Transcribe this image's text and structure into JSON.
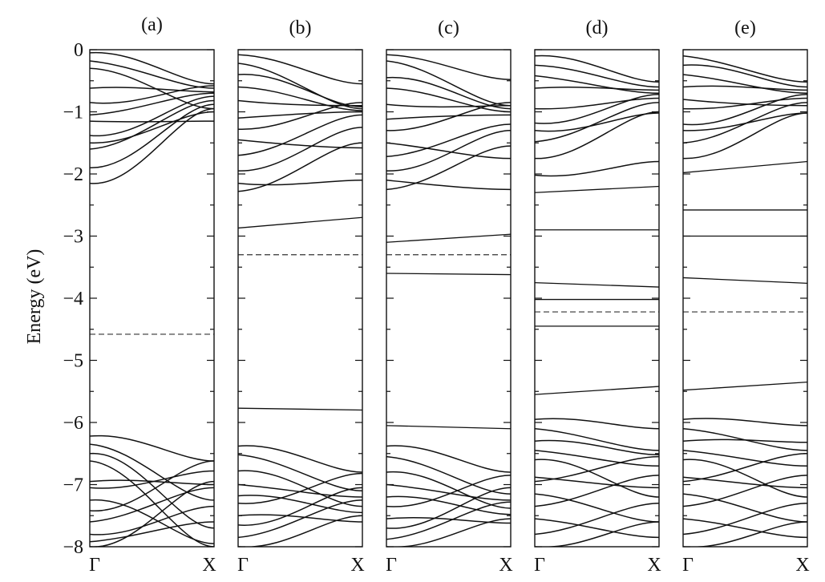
{
  "chart_data": {
    "type": "line",
    "ylabel": "Energy (eV)",
    "ylim": [
      -8,
      0
    ],
    "y_ticks": [
      "0",
      "−1",
      "−2",
      "−3",
      "−4",
      "−5",
      "−6",
      "−7",
      "−8"
    ],
    "y_tick_values": [
      0,
      -1,
      -2,
      -3,
      -4,
      -5,
      -6,
      -7,
      -8
    ],
    "x_ticks": [
      "Γ",
      "X"
    ],
    "panels": [
      {
        "label": "(a)",
        "fermi_level": -4.58,
        "flat_bands": [],
        "dispersive_bands": [
          [
            -0.18,
            -0.62
          ],
          [
            -0.62,
            -0.68
          ],
          [
            -1.15,
            -1.15
          ],
          [
            -1.38,
            -0.75
          ],
          [
            -1.6,
            -0.82
          ],
          [
            -1.9,
            -0.88
          ],
          [
            -2.15,
            -0.95
          ],
          [
            -0.05,
            -0.55
          ],
          [
            -0.3,
            -0.95
          ],
          [
            -0.85,
            -0.58
          ],
          [
            -1.05,
            -0.7
          ],
          [
            -1.5,
            -1.0
          ]
        ],
        "valence_bands": [
          [
            -6.22,
            -6.62
          ],
          [
            -6.35,
            -7.25
          ],
          [
            -6.5,
            -7.7
          ],
          [
            -6.62,
            -8.0
          ],
          [
            -6.95,
            -7.0
          ],
          [
            -7.05,
            -6.78
          ],
          [
            -7.25,
            -7.95
          ],
          [
            -7.42,
            -6.62
          ],
          [
            -7.6,
            -7.05
          ],
          [
            -7.8,
            -7.35
          ],
          [
            -7.92,
            -7.6
          ],
          [
            -8.0,
            -6.95
          ]
        ]
      },
      {
        "label": "(b)",
        "fermi_level": -3.3,
        "flat_bands": [
          [
            -2.87,
            -2.7
          ],
          [
            -5.77,
            -5.8
          ]
        ],
        "dispersive_bands": [
          [
            -0.22,
            -0.95
          ],
          [
            -0.4,
            -0.92
          ],
          [
            -0.6,
            -0.98
          ],
          [
            -0.82,
            -0.9
          ],
          [
            -1.1,
            -1.0
          ],
          [
            -1.28,
            -0.85
          ],
          [
            -1.45,
            -1.58
          ],
          [
            -1.7,
            -1.05
          ],
          [
            -1.95,
            -1.25
          ],
          [
            -2.15,
            -2.1
          ],
          [
            -2.28,
            -1.5
          ],
          [
            -0.08,
            -0.55
          ]
        ],
        "valence_bands": [
          [
            -6.38,
            -6.8
          ],
          [
            -6.52,
            -7.1
          ],
          [
            -6.78,
            -7.35
          ],
          [
            -7.0,
            -7.2
          ],
          [
            -7.18,
            -7.45
          ],
          [
            -7.3,
            -6.82
          ],
          [
            -7.5,
            -7.6
          ],
          [
            -7.65,
            -7.05
          ],
          [
            -7.85,
            -7.25
          ],
          [
            -8.0,
            -7.5
          ]
        ]
      },
      {
        "label": "(c)",
        "fermi_level": -3.3,
        "flat_bands": [
          [
            -3.1,
            -2.97
          ],
          [
            -3.6,
            -3.62
          ],
          [
            -6.05,
            -6.1
          ]
        ],
        "dispersive_bands": [
          [
            -0.18,
            -0.9
          ],
          [
            -0.45,
            -0.95
          ],
          [
            -0.62,
            -1.0
          ],
          [
            -0.88,
            -0.9
          ],
          [
            -1.12,
            -1.05
          ],
          [
            -1.3,
            -0.85
          ],
          [
            -1.5,
            -1.75
          ],
          [
            -1.72,
            -1.2
          ],
          [
            -1.95,
            -1.3
          ],
          [
            -2.1,
            -2.25
          ],
          [
            -2.25,
            -1.55
          ],
          [
            -0.08,
            -0.48
          ]
        ],
        "valence_bands": [
          [
            -6.38,
            -6.8
          ],
          [
            -6.55,
            -7.15
          ],
          [
            -6.8,
            -7.38
          ],
          [
            -7.0,
            -7.25
          ],
          [
            -7.2,
            -7.48
          ],
          [
            -7.35,
            -6.85
          ],
          [
            -7.55,
            -7.62
          ],
          [
            -7.7,
            -7.05
          ],
          [
            -7.88,
            -7.28
          ],
          [
            -8.0,
            -7.55
          ]
        ]
      },
      {
        "label": "(d)",
        "fermi_level": -4.22,
        "flat_bands": [
          [
            -2.3,
            -2.2
          ],
          [
            -2.9,
            -2.9
          ],
          [
            -3.75,
            -3.82
          ],
          [
            -4.02,
            -4.02
          ],
          [
            -4.45,
            -4.45
          ],
          [
            -5.55,
            -5.42
          ]
        ],
        "dispersive_bands": [
          [
            -0.42,
            -0.7
          ],
          [
            -0.62,
            -0.65
          ],
          [
            -0.95,
            -0.78
          ],
          [
            -1.18,
            -0.72
          ],
          [
            -1.48,
            -0.85
          ],
          [
            -1.75,
            -1.0
          ],
          [
            -2.02,
            -1.8
          ],
          [
            -0.1,
            -0.52
          ],
          [
            -0.25,
            -0.6
          ],
          [
            -1.3,
            -1.02
          ]
        ],
        "valence_bands": [
          [
            -5.95,
            -6.1
          ],
          [
            -6.1,
            -6.45
          ],
          [
            -6.3,
            -6.52
          ],
          [
            -6.45,
            -6.7
          ],
          [
            -6.6,
            -7.2
          ],
          [
            -6.88,
            -7.05
          ],
          [
            -6.95,
            -6.55
          ],
          [
            -7.15,
            -7.6
          ],
          [
            -7.35,
            -6.85
          ],
          [
            -7.55,
            -7.85
          ],
          [
            -7.8,
            -7.3
          ],
          [
            -8.0,
            -7.6
          ]
        ]
      },
      {
        "label": "(e)",
        "fermi_level": -4.22,
        "flat_bands": [
          [
            -1.98,
            -1.8
          ],
          [
            -2.58,
            -2.58
          ],
          [
            -3.0,
            -3.0
          ],
          [
            -3.67,
            -3.76
          ],
          [
            -5.48,
            -5.35
          ]
        ],
        "dispersive_bands": [
          [
            -0.4,
            -0.7
          ],
          [
            -0.6,
            -0.65
          ],
          [
            -0.95,
            -0.78
          ],
          [
            -1.2,
            -0.72
          ],
          [
            -1.5,
            -0.85
          ],
          [
            -1.75,
            -1.02
          ],
          [
            -0.1,
            -0.52
          ],
          [
            -0.25,
            -0.6
          ],
          [
            -1.3,
            -1.02
          ],
          [
            -0.8,
            -0.9
          ]
        ],
        "valence_bands": [
          [
            -5.95,
            -6.05
          ],
          [
            -6.1,
            -6.45
          ],
          [
            -6.3,
            -6.32
          ],
          [
            -6.45,
            -6.7
          ],
          [
            -6.6,
            -7.2
          ],
          [
            -6.88,
            -7.05
          ],
          [
            -6.95,
            -6.5
          ],
          [
            -7.15,
            -7.6
          ],
          [
            -7.35,
            -6.85
          ],
          [
            -7.55,
            -7.85
          ],
          [
            -7.8,
            -7.3
          ],
          [
            -8.0,
            -7.6
          ]
        ]
      }
    ]
  }
}
